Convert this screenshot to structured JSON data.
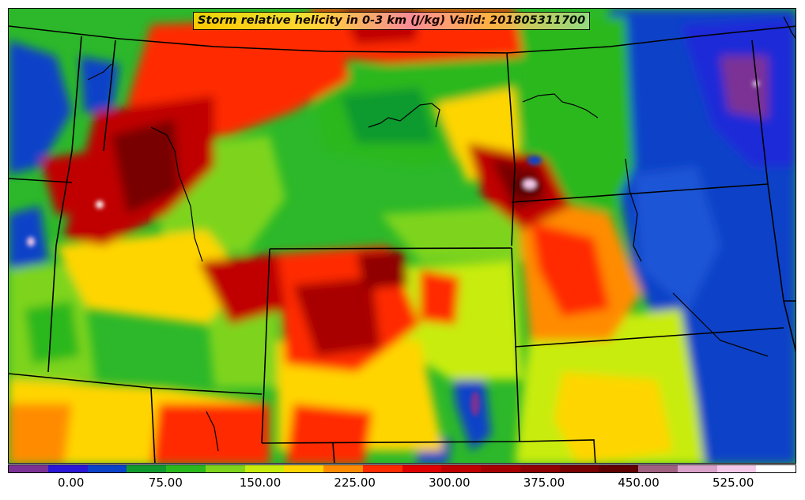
{
  "title": "Storm relative helicity in 0-3 km (J/kg) Valid: 201805311700",
  "colorbar": {
    "colors": [
      "#7b3294",
      "#2a16d6",
      "#0a42c8",
      "#109a2e",
      "#2ab81c",
      "#7ed41a",
      "#c8ec0c",
      "#ffd500",
      "#ff8c00",
      "#ff2a00",
      "#e00000",
      "#c00000",
      "#a80000",
      "#900000",
      "#780000",
      "#600000",
      "#a06080",
      "#d9a0c8",
      "#f4c8e8",
      "#ffffff"
    ],
    "ticks": [
      {
        "value": 0,
        "label": "0.00"
      },
      {
        "value": 75,
        "label": "75.00"
      },
      {
        "value": 150,
        "label": "150.00"
      },
      {
        "value": 225,
        "label": "225.00"
      },
      {
        "value": 300,
        "label": "300.00"
      },
      {
        "value": 375,
        "label": "375.00"
      },
      {
        "value": 450,
        "label": "450.00"
      },
      {
        "value": 525,
        "label": "525.00"
      }
    ],
    "min": -50,
    "max": 575
  },
  "map": {
    "background_color": "#2cb82a",
    "border_color": "#000000"
  }
}
